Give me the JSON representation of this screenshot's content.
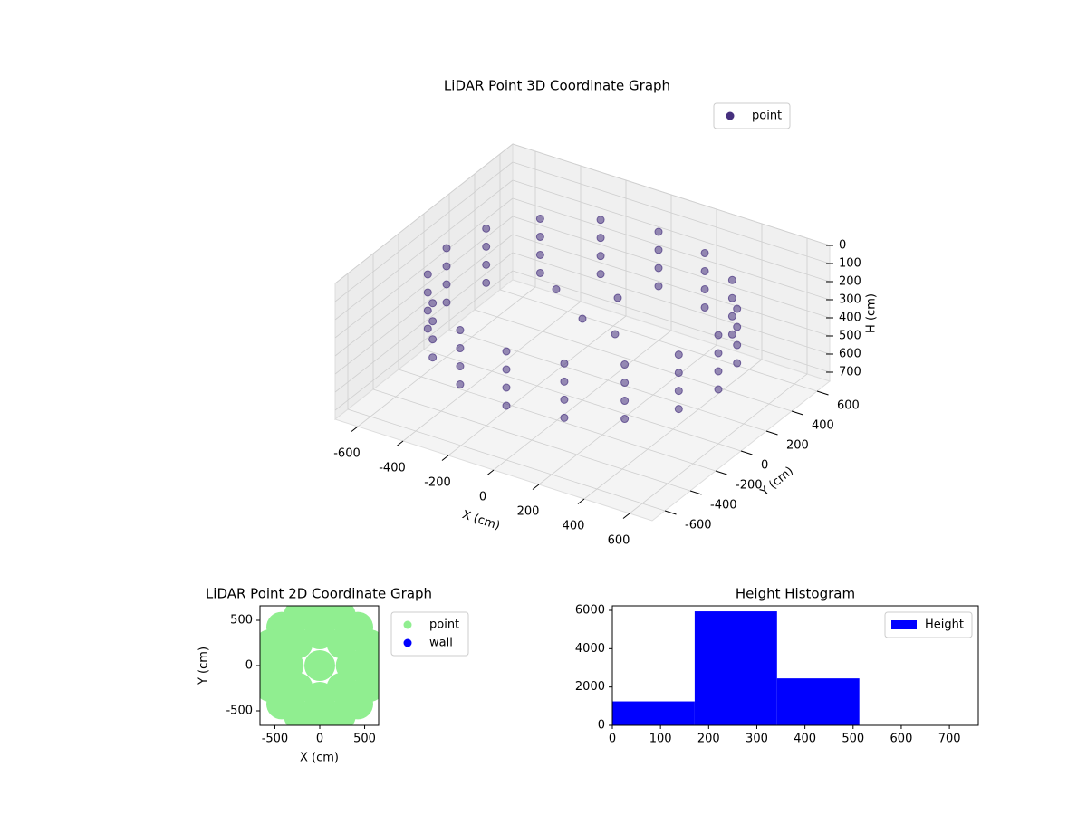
{
  "chart_data": [
    {
      "type": "scatter3d",
      "title": "LiDAR Point 3D Coordinate Graph",
      "x_label": "X (cm)",
      "y_label": "Y (cm)",
      "z_label": "H (cm)",
      "xlim": [
        -700,
        700
      ],
      "ylim": [
        -700,
        700
      ],
      "zlim": [
        0,
        750
      ],
      "xticks": [
        -600,
        -400,
        -200,
        0,
        200,
        400,
        600
      ],
      "yticks": [
        -600,
        -400,
        -200,
        0,
        200,
        400,
        600
      ],
      "zticks": [
        0,
        100,
        200,
        300,
        400,
        500,
        600,
        700
      ],
      "grid": true,
      "legend": "upper right",
      "series": [
        {
          "name": "point",
          "color": "#46307e",
          "x": [
            600,
            554,
            424,
            230,
            0,
            -230,
            -424,
            -554,
            -600,
            -554,
            -424,
            -230,
            0,
            230,
            424,
            554,
            600,
            554,
            424,
            230,
            0,
            -230,
            -424,
            -554,
            -600,
            -554,
            -424,
            -230,
            0,
            230,
            424,
            554,
            600,
            554,
            424,
            230,
            0,
            -230,
            -424,
            -554,
            -600,
            -554,
            -424,
            -230,
            0,
            230,
            424,
            554,
            600,
            554,
            424,
            230,
            0,
            -230,
            -424,
            -554,
            -600,
            -554,
            -424,
            -230,
            0,
            230,
            424,
            554,
            0,
            200,
            -200,
            100
          ],
          "y": [
            0,
            230,
            424,
            554,
            600,
            554,
            424,
            230,
            0,
            -230,
            -424,
            -554,
            -600,
            -554,
            -424,
            -230,
            0,
            230,
            424,
            554,
            600,
            554,
            424,
            230,
            0,
            -230,
            -424,
            -554,
            -600,
            -554,
            -424,
            -230,
            0,
            230,
            424,
            554,
            600,
            554,
            424,
            230,
            0,
            -230,
            -424,
            -554,
            -600,
            -554,
            -424,
            -230,
            0,
            230,
            424,
            554,
            600,
            554,
            424,
            230,
            0,
            -230,
            -424,
            -554,
            -600,
            -554,
            -424,
            -230,
            0,
            -100,
            150,
            100
          ],
          "z": [
            150,
            150,
            150,
            150,
            150,
            150,
            150,
            150,
            150,
            150,
            150,
            150,
            150,
            150,
            150,
            150,
            250,
            250,
            250,
            250,
            250,
            250,
            250,
            250,
            250,
            250,
            250,
            250,
            250,
            250,
            250,
            250,
            350,
            350,
            350,
            350,
            350,
            350,
            350,
            350,
            350,
            350,
            350,
            350,
            350,
            350,
            350,
            350,
            450,
            450,
            450,
            450,
            450,
            450,
            450,
            450,
            450,
            450,
            450,
            450,
            450,
            450,
            450,
            450,
            300,
            250,
            300,
            200
          ]
        }
      ]
    },
    {
      "type": "scatter",
      "title": "LiDAR Point 2D Coordinate Graph",
      "x_label": "X (cm)",
      "y_label": "Y (cm)",
      "xlim": [
        -666,
        656
      ],
      "ylim": [
        -660,
        660
      ],
      "xticks": [
        -500,
        0,
        500
      ],
      "yticks": [
        -500,
        0,
        500
      ],
      "legend": "outside right",
      "series": [
        {
          "name": "point",
          "color": "#90ee90",
          "x": [
            600,
            554,
            424,
            230,
            0,
            -230,
            -424,
            -554,
            -600,
            -554,
            -424,
            -230,
            0,
            230,
            424,
            554,
            350,
            247,
            0,
            -247,
            -350,
            -247,
            0,
            247,
            0
          ],
          "y": [
            0,
            230,
            424,
            554,
            600,
            554,
            424,
            230,
            0,
            -230,
            -424,
            -554,
            -600,
            -554,
            -424,
            -230,
            0,
            247,
            350,
            247,
            0,
            -247,
            -350,
            -247,
            0
          ]
        },
        {
          "name": "wall",
          "color": "#0000ff",
          "x": [],
          "y": []
        }
      ]
    },
    {
      "type": "histogram",
      "title": "Height Histogram",
      "xlim": [
        0,
        760
      ],
      "ylim": [
        0,
        6236
      ],
      "xticks": [
        0,
        100,
        200,
        300,
        400,
        500,
        600,
        700
      ],
      "yticks": [
        0,
        2000,
        4000,
        6000
      ],
      "legend": "upper right",
      "bins": [
        0,
        171,
        342,
        513
      ],
      "series": [
        {
          "name": "Height",
          "color": "#0000ff",
          "values": [
            1250,
            5950,
            2450
          ]
        }
      ]
    }
  ]
}
